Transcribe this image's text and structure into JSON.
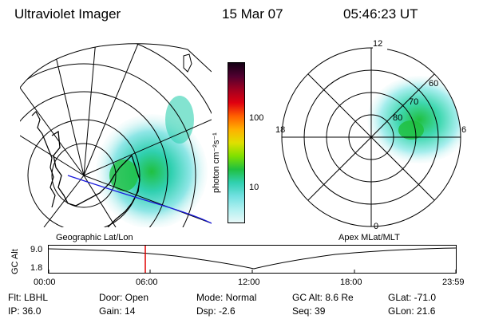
{
  "header": {
    "title": "Ultraviolet Imager",
    "date": "15 Mar 07",
    "time": "05:46:23 UT"
  },
  "geo_panel": {
    "label": "Geographic Lat/Lon"
  },
  "polar_panel": {
    "label": "Apex MLat/MLT",
    "mlt_labels": {
      "top": "12",
      "left": "18",
      "right": "6",
      "bottom": "0"
    },
    "lat_labels": [
      "60",
      "70",
      "80"
    ]
  },
  "colorbar": {
    "unit_label": "photon cm⁻²s⁻¹",
    "ticks": [
      "100",
      "10"
    ],
    "colors": [
      "#140014",
      "#500030",
      "#a00020",
      "#e00010",
      "#ff6000",
      "#ffb000",
      "#e0e000",
      "#80e000",
      "#20c040",
      "#30d0b0",
      "#70e0e0",
      "#b0f0f0",
      "#e8f8f8"
    ]
  },
  "timeline": {
    "axis_label": "GC Alt",
    "y_ticks": [
      "9.0",
      "1.8"
    ],
    "x_ticks": [
      "00:00",
      "06:00",
      "12:00",
      "18:00",
      "23:59"
    ],
    "cursor_color": "#e00000"
  },
  "info": {
    "filter": "Flt: LBHL",
    "ip": "IP: 36.0",
    "door": "Door: Open",
    "gain": "Gain: 14",
    "mode": "Mode: Normal",
    "dsp": "Dsp:   -2.6",
    "gc_alt": "GC Alt: 8.6 Re",
    "seq": "Seq: 39",
    "glat": "GLat: -71.0",
    "glon": "GLon:  21.6"
  }
}
